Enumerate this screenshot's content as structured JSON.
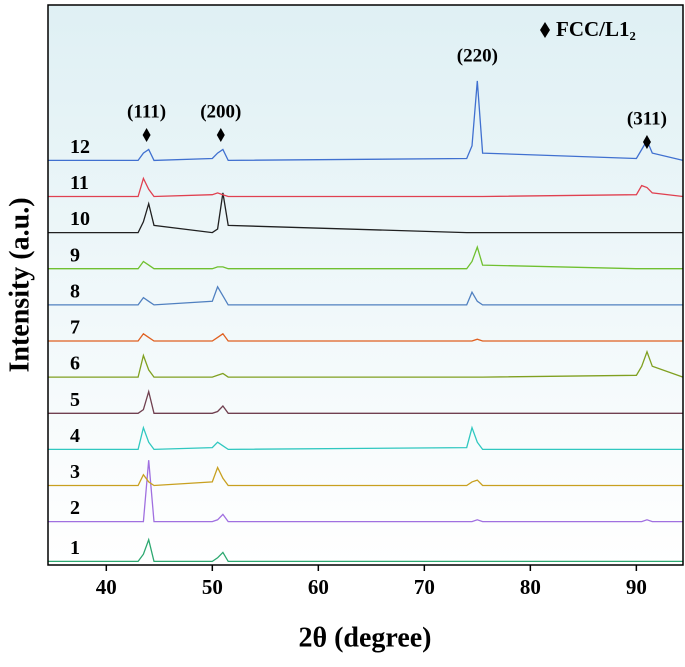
{
  "chart_data": {
    "type": "line",
    "xlabel": "2θ (degree)",
    "ylabel": "Intensity (a.u.)",
    "xlim": [
      34.5,
      94.4
    ],
    "xticks": [
      40,
      50,
      60,
      70,
      80,
      90
    ],
    "ylim": [
      0,
      15.5
    ],
    "legend": {
      "label": "FCC/L1₂",
      "marker": "diamond",
      "position": "upper right"
    },
    "annotations": [
      {
        "label": "(111)",
        "x": 43.8
      },
      {
        "label": "(200)",
        "x": 50.8
      },
      {
        "label": "(220)",
        "x": 75
      },
      {
        "label": "(311)",
        "x": 91
      }
    ],
    "x": [
      34.5,
      43,
      43.5,
      44,
      44.5,
      50,
      50.5,
      51,
      51.5,
      74,
      74.5,
      75,
      75.5,
      90,
      90.5,
      91,
      91.5,
      94.4
    ],
    "series": [
      {
        "name": "1",
        "color": "#2ca870",
        "values": [
          0.1,
          0.1,
          0.3,
          0.7,
          0.1,
          0.1,
          0.2,
          0.35,
          0.1,
          0.1,
          0.1,
          0.1,
          0.1,
          0.1,
          0.1,
          0.1,
          0.1,
          0.1
        ]
      },
      {
        "name": "2",
        "color": "#a070e0",
        "values": [
          1.2,
          1.2,
          1.2,
          2.9,
          1.2,
          1.2,
          1.25,
          1.4,
          1.2,
          1.2,
          1.2,
          1.25,
          1.2,
          1.2,
          1.2,
          1.25,
          1.2,
          1.2
        ]
      },
      {
        "name": "3",
        "color": "#c8a020",
        "values": [
          2.2,
          2.2,
          2.5,
          2.3,
          2.2,
          2.3,
          2.7,
          2.4,
          2.2,
          2.2,
          2.3,
          2.35,
          2.2,
          2.2,
          2.2,
          2.2,
          2.2,
          2.2
        ]
      },
      {
        "name": "4",
        "color": "#30c8c0",
        "values": [
          3.2,
          3.2,
          3.8,
          3.4,
          3.2,
          3.25,
          3.4,
          3.3,
          3.2,
          3.25,
          3.8,
          3.4,
          3.2,
          3.2,
          3.2,
          3.2,
          3.2,
          3.2
        ]
      },
      {
        "name": "5",
        "color": "#704050",
        "values": [
          4.2,
          4.2,
          4.3,
          4.8,
          4.2,
          4.2,
          4.25,
          4.4,
          4.2,
          4.2,
          4.2,
          4.2,
          4.2,
          4.2,
          4.2,
          4.2,
          4.2,
          4.2
        ]
      },
      {
        "name": "6",
        "color": "#80a020",
        "values": [
          5.2,
          5.2,
          5.8,
          5.4,
          5.2,
          5.2,
          5.25,
          5.3,
          5.2,
          5.2,
          5.2,
          5.2,
          5.2,
          5.25,
          5.5,
          5.9,
          5.5,
          5.2
        ]
      },
      {
        "name": "7",
        "color": "#e06020",
        "values": [
          6.2,
          6.2,
          6.4,
          6.3,
          6.2,
          6.2,
          6.3,
          6.4,
          6.2,
          6.2,
          6.2,
          6.25,
          6.2,
          6.2,
          6.2,
          6.2,
          6.2,
          6.2
        ]
      },
      {
        "name": "8",
        "color": "#5080c0",
        "values": [
          7.2,
          7.2,
          7.4,
          7.3,
          7.2,
          7.3,
          7.7,
          7.45,
          7.2,
          7.2,
          7.55,
          7.3,
          7.2,
          7.2,
          7.2,
          7.2,
          7.2,
          7.2
        ]
      },
      {
        "name": "9",
        "color": "#70c030",
        "values": [
          8.2,
          8.2,
          8.4,
          8.3,
          8.2,
          8.2,
          8.25,
          8.25,
          8.2,
          8.2,
          8.4,
          8.8,
          8.3,
          8.2,
          8.2,
          8.2,
          8.2,
          8.2
        ]
      },
      {
        "name": "10",
        "color": "#202020",
        "values": [
          9.2,
          9.2,
          9.5,
          10.0,
          9.4,
          9.2,
          9.3,
          10.3,
          9.4,
          9.2,
          9.2,
          9.2,
          9.2,
          9.2,
          9.2,
          9.2,
          9.2,
          9.2
        ]
      },
      {
        "name": "11",
        "color": "#e04050",
        "values": [
          10.2,
          10.2,
          10.7,
          10.4,
          10.2,
          10.25,
          10.3,
          10.25,
          10.2,
          10.2,
          10.2,
          10.2,
          10.2,
          10.25,
          10.5,
          10.45,
          10.3,
          10.2
        ]
      },
      {
        "name": "12",
        "color": "#4070d0",
        "values": [
          11.2,
          11.2,
          11.4,
          11.5,
          11.2,
          11.25,
          11.4,
          11.5,
          11.2,
          11.25,
          11.6,
          13.4,
          11.4,
          11.25,
          11.5,
          11.75,
          11.4,
          11.2
        ]
      }
    ]
  }
}
